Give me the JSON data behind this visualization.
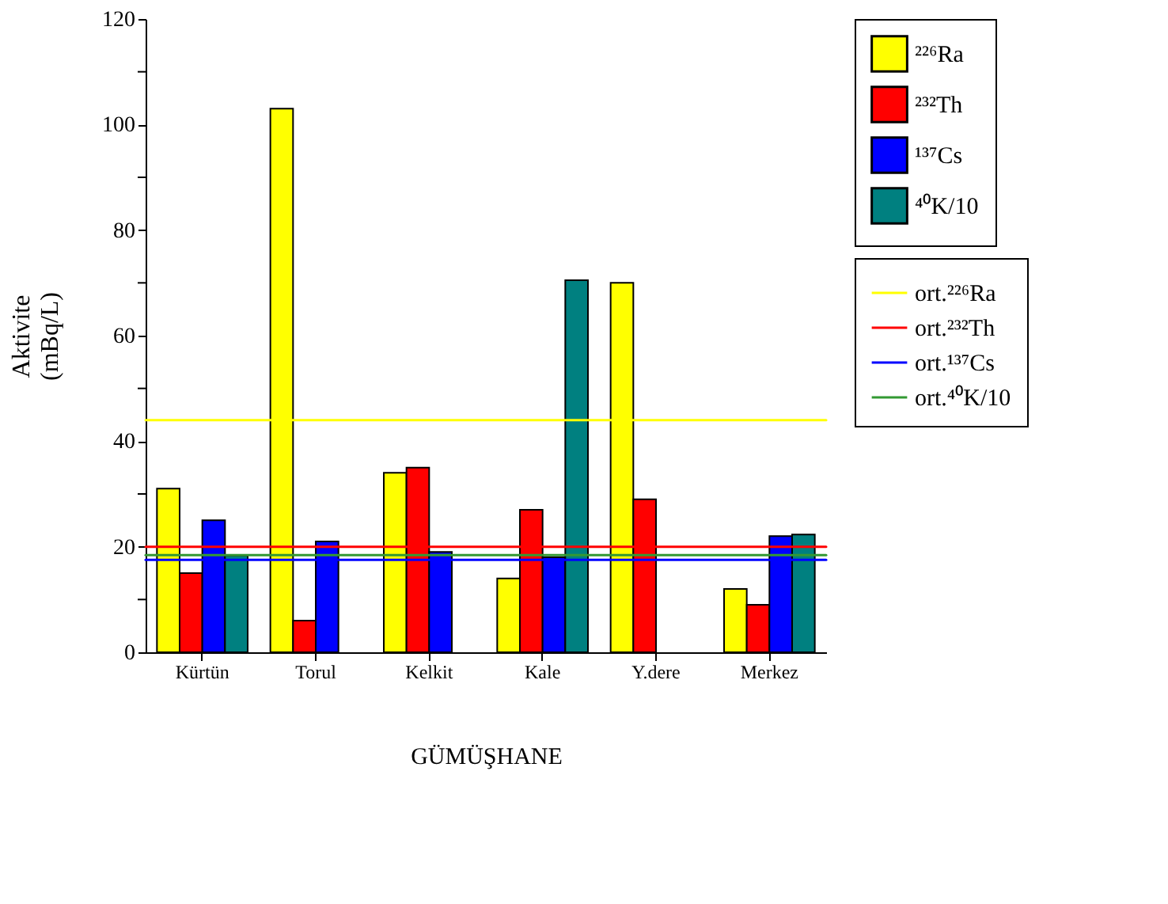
{
  "chart_data": {
    "type": "bar",
    "xlabel": "GÜMÜŞHANE",
    "ylabel": "Aktivite\n(mBq/L)",
    "categories": [
      "Kürtün",
      "Torul",
      "Kelkit",
      "Kale",
      "Y.dere",
      "Merkez"
    ],
    "series": [
      {
        "name": "²²⁶Ra",
        "color": "#ffff00",
        "values": [
          31,
          103,
          34,
          14,
          70,
          12
        ]
      },
      {
        "name": "²³²Th",
        "color": "#ff0000",
        "values": [
          15,
          6,
          35,
          27,
          29,
          9
        ]
      },
      {
        "name": "¹³⁷Cs",
        "color": "#0000ff",
        "values": [
          25,
          21,
          19,
          18,
          null,
          22
        ]
      },
      {
        "name": "⁴⁰K/10",
        "color": "#008080",
        "values": [
          18.3,
          null,
          null,
          70.5,
          null,
          22.3
        ]
      }
    ],
    "ref_lines": [
      {
        "axis": "y",
        "value": 44,
        "label": "ort.²²⁶Ra",
        "color": "#ffff00"
      },
      {
        "axis": "y",
        "value": 20,
        "label": "ort.²³²Th",
        "color": "#ff0000"
      },
      {
        "axis": "y",
        "value": 17.5,
        "label": "ort.¹³⁷Cs",
        "color": "#0000ff"
      },
      {
        "axis": "y",
        "value": 18.4,
        "label": "ort.⁴⁰K/10",
        "color": "#339933"
      }
    ],
    "ylim": [
      0,
      120
    ],
    "yticks": [
      0,
      {
        "value": 10,
        "label": null
      },
      20,
      {
        "value": 30,
        "label": null
      },
      40,
      {
        "value": 50,
        "label": null
      },
      60,
      {
        "value": 70,
        "label": null
      },
      80,
      {
        "value": 90,
        "label": null
      },
      100,
      {
        "value": 110,
        "label": null
      },
      120
    ],
    "grid": false,
    "legend": "top right"
  }
}
